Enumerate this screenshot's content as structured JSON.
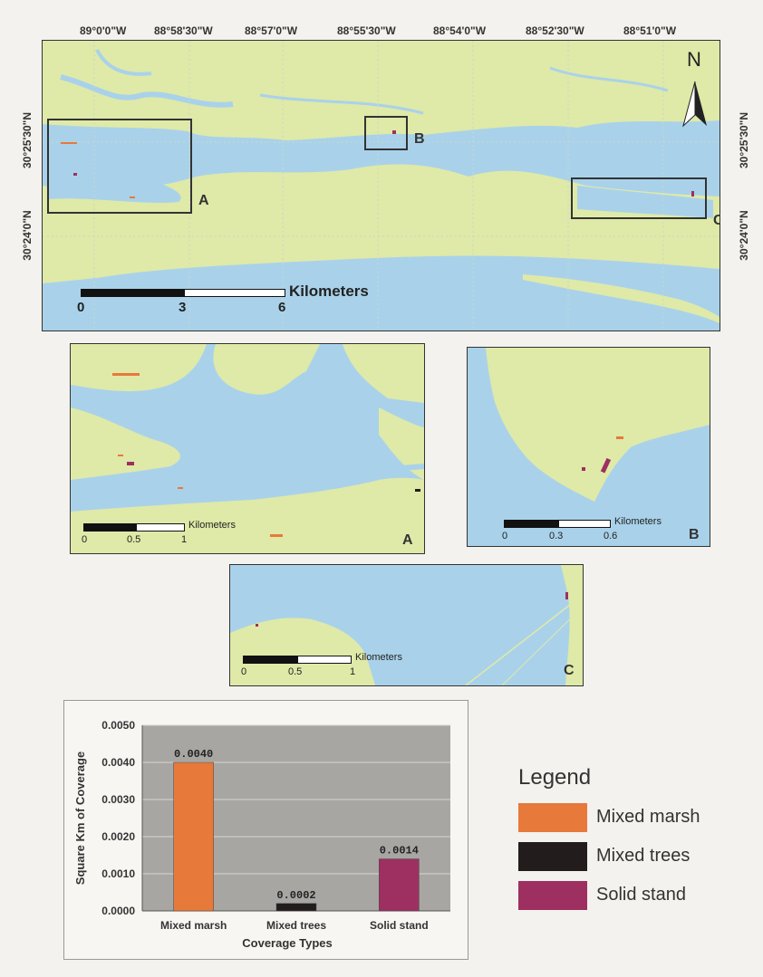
{
  "main_map": {
    "top_lon_labels": [
      "89°0'0\"W",
      "88°58'30\"W",
      "88°57'0\"W",
      "88°55'30\"W",
      "88°54'0\"W",
      "88°52'30\"W",
      "88°51'0\"W"
    ],
    "left_lat_labels": [
      "30°25'30\"N",
      "30°24'0\"N"
    ],
    "right_lat_labels": [
      "30°25'30\"N",
      "30°24'0\"N"
    ],
    "north_label": "N",
    "box_labels": [
      "A",
      "B",
      "C"
    ],
    "scale": {
      "unit": "Kilometers",
      "ticks": [
        "0",
        "3",
        "6"
      ]
    }
  },
  "inset_a": {
    "label": "A",
    "scale": {
      "unit": "Kilometers",
      "ticks": [
        "0",
        "0.5",
        "1"
      ]
    }
  },
  "inset_b": {
    "label": "B",
    "scale": {
      "unit": "Kilometers",
      "ticks": [
        "0",
        "0.3",
        "0.6"
      ]
    }
  },
  "inset_c": {
    "label": "C",
    "scale": {
      "unit": "Kilometers",
      "ticks": [
        "0",
        "0.5",
        "1"
      ]
    }
  },
  "colors": {
    "water": "#a9d2ea",
    "land": "#dfe9a8",
    "chart_plot_bg": "#a8a6a3",
    "mixed_marsh": "#e7793b",
    "mixed_trees": "#221c1c",
    "solid_stand": "#9d3060"
  },
  "chart_data": {
    "type": "bar",
    "categories": [
      "Mixed marsh",
      "Mixed trees",
      "Solid stand"
    ],
    "values": [
      0.004,
      0.0002,
      0.0014
    ],
    "value_labels": [
      "0.0040",
      "0.0002",
      "0.0014"
    ],
    "bar_colors": [
      "#e7793b",
      "#221c1c",
      "#9d3060"
    ],
    "xlabel": "Coverage Types",
    "ylabel": "Square Km of Coverage",
    "ylim": [
      0,
      0.005
    ],
    "yticks": [
      "0.0000",
      "0.0010",
      "0.0020",
      "0.0030",
      "0.0040",
      "0.0050"
    ],
    "grid": true
  },
  "legend": {
    "title": "Legend",
    "items": [
      {
        "label": "Mixed marsh",
        "color": "#e7793b"
      },
      {
        "label": "Mixed trees",
        "color": "#221c1c"
      },
      {
        "label": "Solid stand",
        "color": "#9d3060"
      }
    ]
  }
}
